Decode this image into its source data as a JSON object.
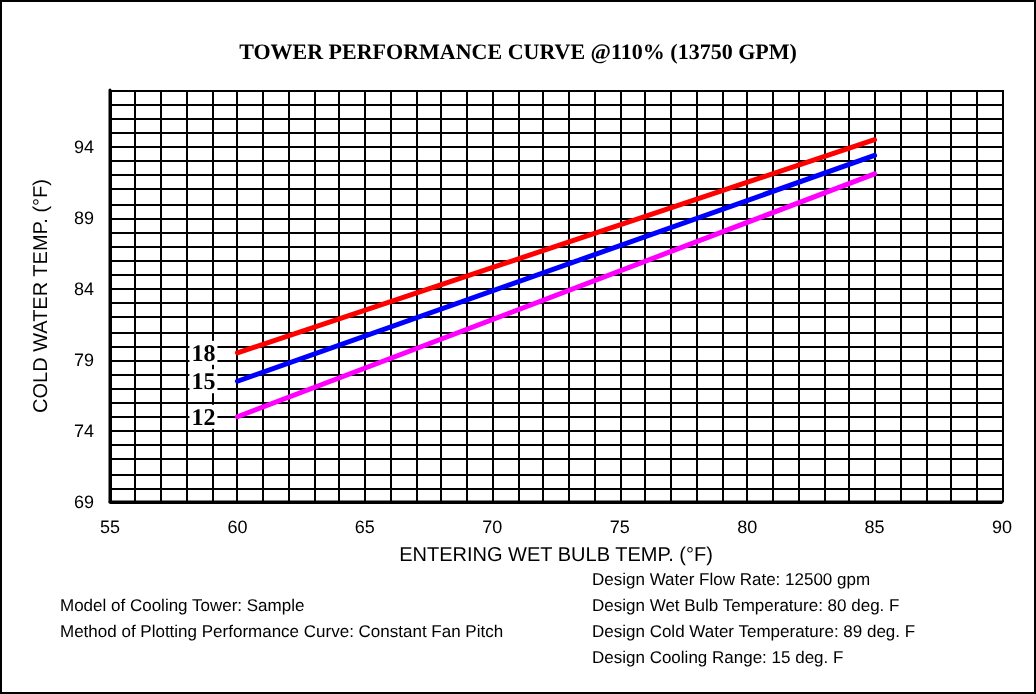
{
  "chart_data": {
    "type": "line",
    "title": "TOWER PERFORMANCE CURVE @110% (13750 GPM)",
    "xlabel": "ENTERING WET BULB TEMP. (°F)",
    "ylabel": "COLD WATER TEMP. (°F)",
    "series": [
      {
        "name": "18",
        "color": "#ff0000",
        "values": [
          79.5,
          94.5
        ]
      },
      {
        "name": "15",
        "color": "#0000ff",
        "values": [
          77.5,
          93.4
        ]
      },
      {
        "name": "12",
        "color": "#ff00ff",
        "values": [
          75,
          92.1
        ]
      }
    ],
    "x": [
      60,
      85
    ],
    "xlim": [
      55,
      90
    ],
    "xticks": [
      55,
      {
        "value": 56,
        "label": null
      },
      {
        "value": 57,
        "label": null
      },
      {
        "value": 58,
        "label": null
      },
      {
        "value": 59,
        "label": null
      },
      60,
      {
        "value": 61,
        "label": null
      },
      {
        "value": 62,
        "label": null
      },
      {
        "value": 63,
        "label": null
      },
      {
        "value": 64,
        "label": null
      },
      65,
      {
        "value": 66,
        "label": null
      },
      {
        "value": 67,
        "label": null
      },
      {
        "value": 68,
        "label": null
      },
      {
        "value": 69,
        "label": null
      },
      70,
      {
        "value": 71,
        "label": null
      },
      {
        "value": 72,
        "label": null
      },
      {
        "value": 73,
        "label": null
      },
      {
        "value": 74,
        "label": null
      },
      75,
      {
        "value": 76,
        "label": null
      },
      {
        "value": 77,
        "label": null
      },
      {
        "value": 78,
        "label": null
      },
      {
        "value": 79,
        "label": null
      },
      80,
      {
        "value": 81,
        "label": null
      },
      {
        "value": 82,
        "label": null
      },
      {
        "value": 83,
        "label": null
      },
      {
        "value": 84,
        "label": null
      },
      85,
      {
        "value": 86,
        "label": null
      },
      {
        "value": 87,
        "label": null
      },
      {
        "value": 88,
        "label": null
      },
      {
        "value": 89,
        "label": null
      },
      90
    ],
    "ylim": [
      69,
      98
    ],
    "yticks": [
      69,
      {
        "value": 70,
        "label": null
      },
      {
        "value": 71,
        "label": null
      },
      {
        "value": 72,
        "label": null
      },
      {
        "value": 73,
        "label": null
      },
      74,
      {
        "value": 75,
        "label": null
      },
      {
        "value": 76,
        "label": null
      },
      {
        "value": 77,
        "label": null
      },
      {
        "value": 78,
        "label": null
      },
      79,
      {
        "value": 80,
        "label": null
      },
      {
        "value": 81,
        "label": null
      },
      {
        "value": 82,
        "label": null
      },
      {
        "value": 83,
        "label": null
      },
      84,
      {
        "value": 85,
        "label": null
      },
      {
        "value": 86,
        "label": null
      },
      {
        "value": 87,
        "label": null
      },
      {
        "value": 88,
        "label": null
      },
      89,
      {
        "value": 90,
        "label": null
      },
      {
        "value": 91,
        "label": null
      },
      {
        "value": 92,
        "label": null
      },
      {
        "value": 93,
        "label": null
      },
      94,
      {
        "value": 95,
        "label": null
      },
      {
        "value": 96,
        "label": null
      },
      {
        "value": 97,
        "label": null
      },
      {
        "value": 98,
        "label": null
      }
    ],
    "grid": true,
    "legend": false,
    "marker": "none",
    "line_style": "solid",
    "annotations": [
      "Model of Cooling Tower: Sample",
      "Method of Plotting Performance Curve: Constant Fan Pitch",
      "Design Water Flow Rate: 12500 gpm",
      "Design Wet Bulb Temperature: 80 deg. F",
      "Design Cold Water Temperature: 89 deg. F",
      "Design Cooling Range: 15 deg. F"
    ]
  }
}
